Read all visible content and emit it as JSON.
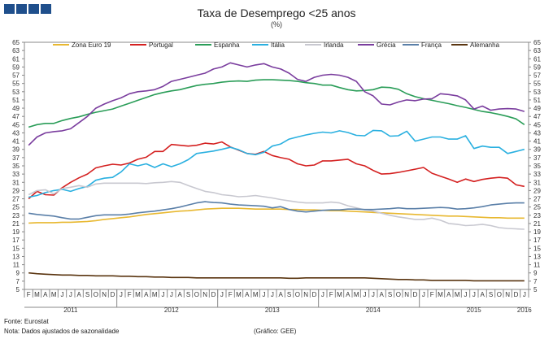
{
  "header": {
    "title": "Taxa de Desemprego <25 anos",
    "subtitle": "(%)"
  },
  "footer": {
    "source": "Fonte: Eurostat",
    "note": "Nota: Dados ajustados de sazonalidade",
    "credit": "(Gráfico: GEE)"
  },
  "chart_data": {
    "type": "line",
    "title": "Taxa de Desemprego <25 anos",
    "ylabel": "(%)",
    "ylim": [
      5,
      65
    ],
    "yticks": [
      5,
      7,
      9,
      11,
      13,
      15,
      17,
      19,
      21,
      23,
      25,
      27,
      29,
      31,
      33,
      35,
      37,
      39,
      41,
      43,
      45,
      47,
      49,
      51,
      53,
      55,
      57,
      59,
      61,
      63,
      65
    ],
    "month_labels": [
      "F",
      "M",
      "A",
      "M",
      "J",
      "J",
      "A",
      "S",
      "O",
      "N",
      "D",
      "J",
      "F",
      "M",
      "A",
      "M",
      "J",
      "J",
      "A",
      "S",
      "O",
      "N",
      "D",
      "J",
      "F",
      "M",
      "A",
      "M",
      "J",
      "J",
      "A",
      "S",
      "O",
      "N",
      "D",
      "J",
      "F",
      "M",
      "A",
      "M",
      "J",
      "J",
      "A",
      "S",
      "O",
      "N",
      "D",
      "J",
      "F",
      "M",
      "A",
      "M",
      "J",
      "J",
      "A",
      "S",
      "O",
      "N",
      "D",
      "J"
    ],
    "year_labels": [
      {
        "label": "2011",
        "month_index": 5
      },
      {
        "label": "2012",
        "month_index": 17
      },
      {
        "label": "2013",
        "month_index": 29
      },
      {
        "label": "2014",
        "month_index": 41
      },
      {
        "label": "2015",
        "month_index": 53
      },
      {
        "label": "2016",
        "month_index": 59
      }
    ],
    "series": [
      {
        "name": "Zona Euro 19",
        "color": "#e8b830",
        "values": [
          21.1,
          21.2,
          21.2,
          21.2,
          21.3,
          21.3,
          21.4,
          21.5,
          21.7,
          22.0,
          22.2,
          22.4,
          22.6,
          22.9,
          23.2,
          23.4,
          23.6,
          23.8,
          24.0,
          24.1,
          24.3,
          24.5,
          24.6,
          24.7,
          24.7,
          24.7,
          24.6,
          24.5,
          24.5,
          24.5,
          24.5,
          24.4,
          24.4,
          24.3,
          24.3,
          24.2,
          24.1,
          24.1,
          24.0,
          23.9,
          23.8,
          23.7,
          23.6,
          23.5,
          23.4,
          23.3,
          23.2,
          23.1,
          23.0,
          22.9,
          22.8,
          22.8,
          22.7,
          22.6,
          22.5,
          22.4,
          22.4,
          22.3,
          22.3,
          22.3
        ]
      },
      {
        "name": "Portugal",
        "color": "#d42020",
        "values": [
          27.0,
          28.8,
          28.0,
          27.9,
          29.7,
          31.0,
          32.1,
          33.0,
          34.5,
          35.0,
          35.4,
          35.2,
          35.7,
          36.6,
          37.1,
          38.5,
          38.5,
          40.2,
          40.0,
          39.8,
          40.0,
          40.5,
          40.3,
          40.8,
          39.6,
          38.8,
          38.0,
          37.8,
          38.5,
          37.5,
          37.0,
          36.6,
          35.5,
          35.0,
          35.2,
          36.2,
          36.2,
          36.4,
          36.6,
          35.5,
          35.0,
          33.9,
          33.0,
          33.1,
          33.4,
          33.8,
          34.2,
          34.6,
          33.2,
          32.5,
          31.8,
          31.0,
          31.8,
          31.2,
          31.7,
          32.0,
          32.2,
          32.0,
          30.4,
          30.0
        ]
      },
      {
        "name": "Espanha",
        "color": "#2a9d58",
        "values": [
          44.4,
          45.0,
          45.3,
          45.3,
          46.0,
          46.5,
          46.9,
          47.5,
          48.0,
          48.4,
          48.8,
          49.5,
          50.2,
          50.9,
          51.6,
          52.3,
          52.8,
          53.2,
          53.5,
          54.0,
          54.5,
          54.8,
          55.0,
          55.3,
          55.5,
          55.6,
          55.5,
          55.8,
          55.9,
          55.9,
          55.8,
          55.7,
          55.5,
          55.2,
          55.0,
          54.6,
          54.6,
          54.0,
          53.5,
          53.2,
          53.3,
          53.5,
          54.1,
          54.0,
          53.6,
          52.5,
          51.8,
          51.3,
          50.9,
          50.5,
          50.1,
          49.6,
          49.2,
          48.7,
          48.2,
          47.9,
          47.5,
          47.0,
          46.4,
          45.0
        ]
      },
      {
        "name": "Itália",
        "color": "#2ab0e0",
        "values": [
          27.4,
          27.8,
          28.5,
          29.0,
          29.3,
          28.8,
          29.5,
          30.0,
          31.5,
          32.0,
          32.2,
          33.5,
          35.5,
          35.0,
          35.5,
          34.6,
          35.5,
          34.8,
          35.5,
          36.5,
          38.0,
          38.3,
          38.6,
          39.0,
          39.5,
          38.9,
          38.0,
          37.7,
          38.3,
          39.8,
          40.3,
          41.5,
          42.0,
          42.5,
          42.9,
          43.2,
          43.0,
          43.5,
          43.1,
          42.4,
          42.3,
          43.6,
          43.5,
          42.2,
          42.3,
          43.4,
          41.0,
          41.5,
          42.0,
          42.0,
          41.5,
          41.5,
          42.3,
          39.2,
          39.8,
          39.5,
          39.5,
          38.0,
          38.5,
          39.0
        ]
      },
      {
        "name": "Irlanda",
        "color": "#c8c8d0",
        "values": [
          28.0,
          29.0,
          29.2,
          28.2,
          29.5,
          29.8,
          30.2,
          29.8,
          30.6,
          30.8,
          30.8,
          30.8,
          30.8,
          30.8,
          30.7,
          30.9,
          31.0,
          31.2,
          31.0,
          30.2,
          29.5,
          28.8,
          28.5,
          28.0,
          27.8,
          27.5,
          27.6,
          27.8,
          27.5,
          27.2,
          26.8,
          26.5,
          26.2,
          26.0,
          26.0,
          26.0,
          26.2,
          26.0,
          25.3,
          24.8,
          24.3,
          24.0,
          23.5,
          23.0,
          22.6,
          22.3,
          22.0,
          22.0,
          22.3,
          21.8,
          21.0,
          20.8,
          20.5,
          20.6,
          20.8,
          20.5,
          20.0,
          19.8,
          19.7,
          19.6
        ]
      },
      {
        "name": "Grécia",
        "color": "#7a3d9e",
        "values": [
          40.0,
          42.0,
          43.0,
          43.3,
          43.5,
          44.0,
          45.5,
          47.0,
          49.0,
          50.0,
          50.8,
          51.5,
          52.5,
          53.0,
          53.2,
          53.5,
          54.3,
          55.5,
          56.0,
          56.5,
          57.0,
          57.5,
          58.5,
          59.0,
          60.0,
          59.5,
          59.0,
          59.5,
          59.8,
          59.0,
          58.5,
          57.5,
          56.0,
          55.5,
          56.5,
          57.0,
          57.2,
          57.0,
          56.5,
          55.5,
          53.0,
          52.0,
          50.0,
          49.8,
          50.5,
          51.0,
          50.8,
          51.2,
          51.3,
          52.5,
          52.3,
          52.0,
          51.0,
          48.8,
          49.5,
          48.5,
          48.8,
          48.9,
          48.8,
          48.2
        ]
      },
      {
        "name": "França",
        "color": "#5a7fa8",
        "values": [
          23.5,
          23.2,
          23.0,
          22.8,
          22.4,
          22.1,
          22.1,
          22.5,
          22.9,
          23.1,
          23.1,
          23.1,
          23.3,
          23.6,
          23.8,
          24.0,
          24.3,
          24.6,
          25.0,
          25.5,
          26.0,
          26.3,
          26.1,
          26.0,
          25.7,
          25.5,
          25.4,
          25.3,
          25.2,
          24.8,
          25.1,
          24.4,
          24.0,
          23.8,
          24.0,
          24.2,
          24.3,
          24.3,
          24.5,
          24.5,
          24.4,
          24.4,
          24.5,
          24.6,
          24.8,
          24.6,
          24.6,
          24.7,
          24.8,
          24.9,
          24.8,
          24.5,
          24.6,
          24.8,
          25.1,
          25.5,
          25.7,
          25.9,
          26.0,
          26.0
        ]
      },
      {
        "name": "Alemanha",
        "color": "#5a3510",
        "values": [
          9.0,
          8.8,
          8.7,
          8.6,
          8.5,
          8.5,
          8.4,
          8.4,
          8.3,
          8.3,
          8.3,
          8.2,
          8.2,
          8.1,
          8.1,
          8.0,
          8.0,
          7.9,
          7.9,
          7.9,
          7.8,
          7.8,
          7.8,
          7.8,
          7.8,
          7.8,
          7.8,
          7.8,
          7.8,
          7.8,
          7.8,
          7.7,
          7.7,
          7.8,
          7.8,
          7.8,
          7.8,
          7.8,
          7.8,
          7.8,
          7.8,
          7.7,
          7.6,
          7.5,
          7.4,
          7.4,
          7.3,
          7.3,
          7.2,
          7.2,
          7.2,
          7.2,
          7.2,
          7.1,
          7.1,
          7.1,
          7.1,
          7.1,
          7.1,
          7.1
        ]
      }
    ]
  }
}
